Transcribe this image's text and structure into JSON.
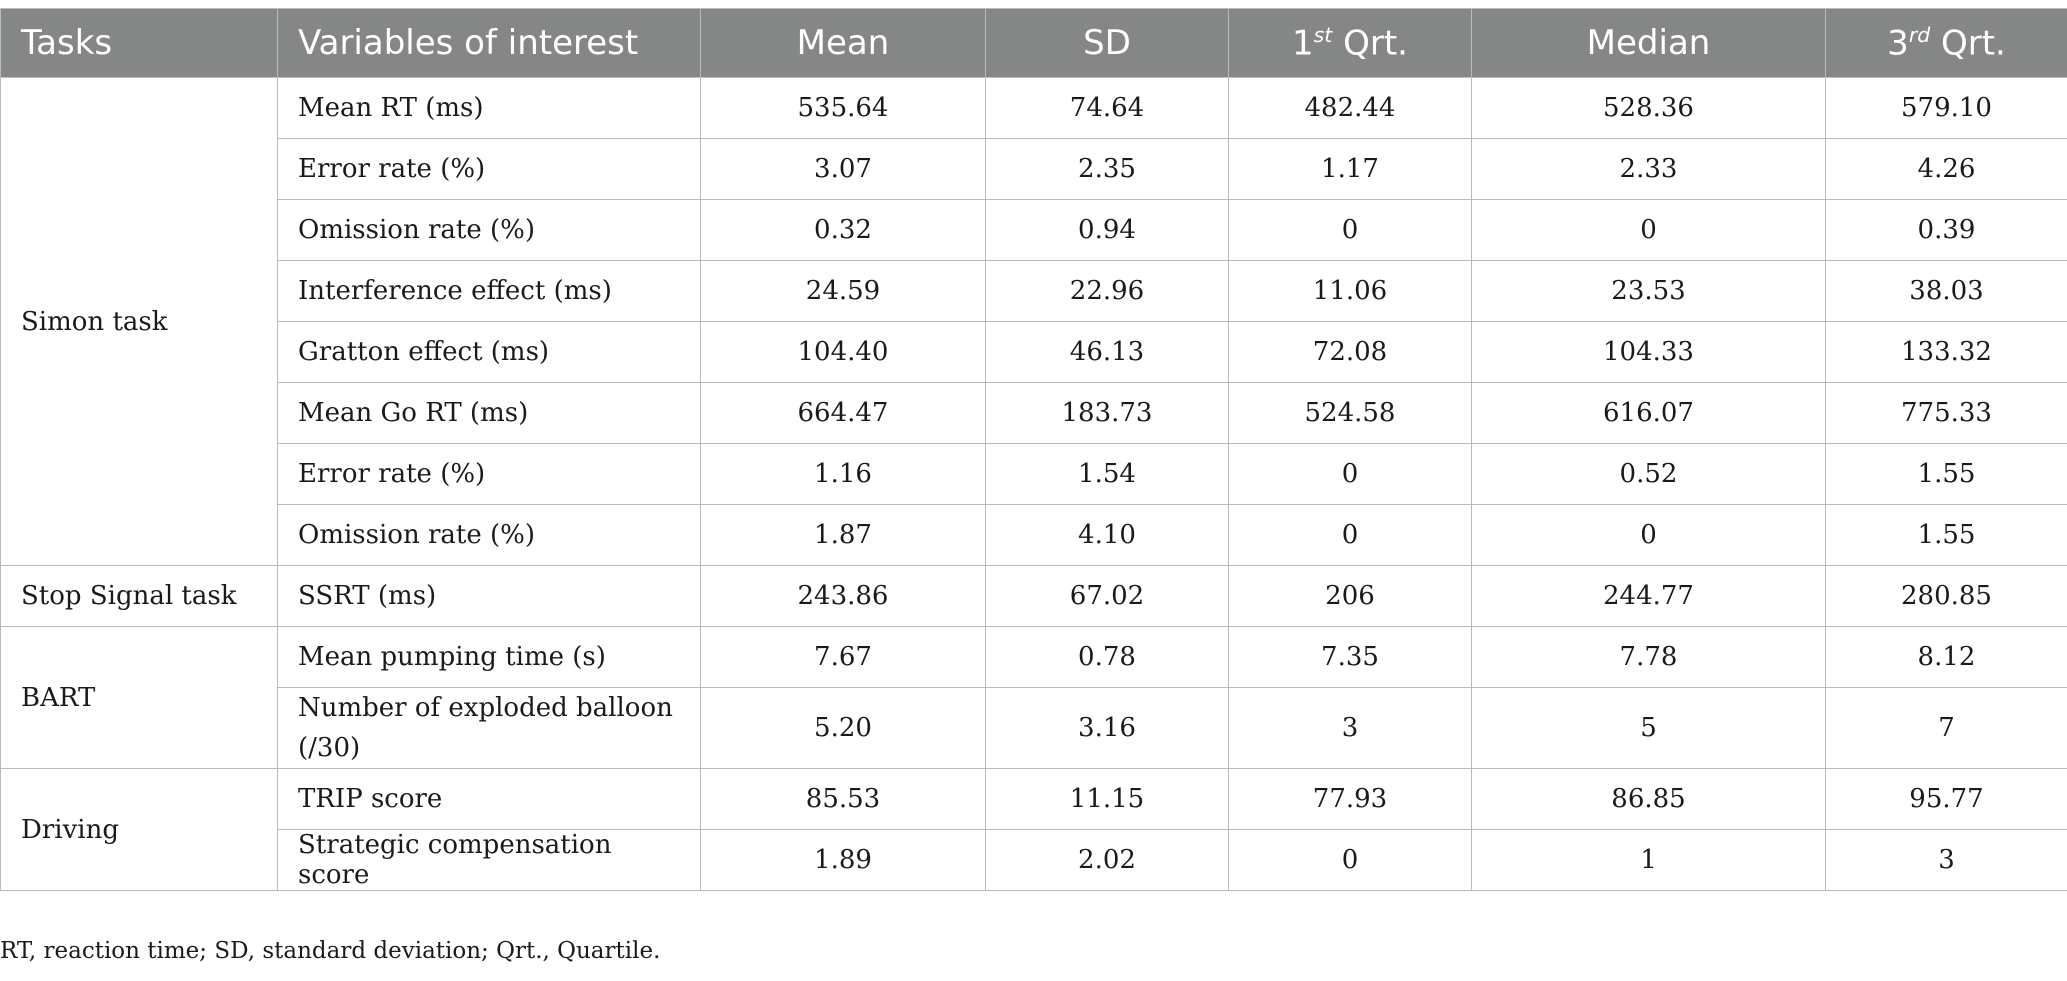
{
  "table": {
    "headers": {
      "tasks": "Tasks",
      "variables": "Variables of interest",
      "mean": "Mean",
      "sd": "SD",
      "q1_base": "1",
      "q1_sup": "st",
      "q1_rest": " Qrt.",
      "median": "Median",
      "q3_base": "3",
      "q3_sup": "rd",
      "q3_rest": " Qrt."
    },
    "rows": [
      {
        "task": "Simon task",
        "variable": "Mean RT (ms)",
        "mean": "535.64",
        "sd": "74.64",
        "q1": "482.44",
        "median": "528.36",
        "q3": "579.10"
      },
      {
        "variable": "Error rate (%)",
        "mean": "3.07",
        "sd": "2.35",
        "q1": "1.17",
        "median": "2.33",
        "q3": "4.26"
      },
      {
        "variable": "Omission rate (%)",
        "mean": "0.32",
        "sd": "0.94",
        "q1": "0",
        "median": "0",
        "q3": "0.39"
      },
      {
        "variable": "Interference effect (ms)",
        "mean": "24.59",
        "sd": "22.96",
        "q1": "11.06",
        "median": "23.53",
        "q3": "38.03"
      },
      {
        "variable": "Gratton effect (ms)",
        "mean": "104.40",
        "sd": "46.13",
        "q1": "72.08",
        "median": "104.33",
        "q3": "133.32"
      },
      {
        "variable": "Mean Go RT (ms)",
        "mean": "664.47",
        "sd": "183.73",
        "q1": "524.58",
        "median": "616.07",
        "q3": "775.33"
      },
      {
        "variable": "Error rate (%)",
        "mean": "1.16",
        "sd": "1.54",
        "q1": "0",
        "median": "0.52",
        "q3": "1.55"
      },
      {
        "variable": "Omission rate (%)",
        "mean": "1.87",
        "sd": "4.10",
        "q1": "0",
        "median": "0",
        "q3": "1.55"
      },
      {
        "task": "Stop Signal task",
        "variable": "SSRT (ms)",
        "mean": "243.86",
        "sd": "67.02",
        "q1": "206",
        "median": "244.77",
        "q3": "280.85"
      },
      {
        "task": "BART",
        "variable": "Mean pumping time (s)",
        "mean": "7.67",
        "sd": "0.78",
        "q1": "7.35",
        "median": "7.78",
        "q3": "8.12"
      },
      {
        "variable": "Number of exploded balloon (/30)",
        "mean": "5.20",
        "sd": "3.16",
        "q1": "3",
        "median": "5",
        "q3": "7"
      },
      {
        "task": "Driving",
        "variable": "TRIP score",
        "mean": "85.53",
        "sd": "11.15",
        "q1": "77.93",
        "median": "86.85",
        "q3": "95.77"
      },
      {
        "variable": "Strategic compensation score",
        "mean": "1.89",
        "sd": "2.02",
        "q1": "0",
        "median": "1",
        "q3": "3"
      }
    ]
  },
  "footnote": "RT, reaction time; SD, standard deviation; Qrt., Quartile."
}
